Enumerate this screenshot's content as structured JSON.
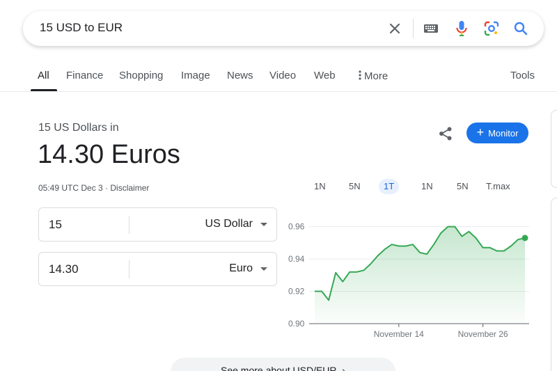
{
  "search": {
    "query": "15 USD to EUR"
  },
  "icons": {
    "clear": "close-icon",
    "keyboard": "keyboard-icon",
    "voice": "microphone-icon",
    "lens": "camera-lens-icon",
    "search": "search-icon",
    "share": "share-icon",
    "more_vert": "more-vert-icon"
  },
  "tabs": [
    {
      "label": "All",
      "active": true
    },
    {
      "label": "Finance"
    },
    {
      "label": "Shopping"
    },
    {
      "label": "Image"
    },
    {
      "label": "News"
    },
    {
      "label": "Video"
    },
    {
      "label": "Web"
    },
    {
      "label": "More"
    }
  ],
  "tools_label": "Tools",
  "conversion": {
    "subtitle": "15 US Dollars in",
    "result": "14.30 Euros",
    "meta": "05:49 UTC Dec 3 · Disclaimer",
    "from": {
      "amount": "15",
      "currency": "US Dollar"
    },
    "to": {
      "amount": "14.30",
      "currency": "Euro"
    }
  },
  "actions": {
    "monitor_label": "Monitor"
  },
  "ranges": [
    {
      "label": "1N"
    },
    {
      "label": "5N"
    },
    {
      "label": "1T",
      "active": true
    },
    {
      "label": "1N"
    },
    {
      "label": "5N"
    },
    {
      "label": "T.max"
    }
  ],
  "colors": {
    "accent": "#1a73e8",
    "line": "#34a853",
    "area": "#e6f4ea"
  },
  "see_more_label": "See more about USD/EUR",
  "chart_data": {
    "type": "area",
    "ylim": [
      0.9,
      0.965
    ],
    "yticks": [
      "0.96",
      "0.94",
      "0.92",
      "0.90"
    ],
    "xtick_labels": [
      {
        "label": "November 14",
        "index": 12
      },
      {
        "label": "November 26",
        "index": 24
      }
    ],
    "series": [
      {
        "values": [
          0.92,
          0.92,
          0.9145,
          0.9315,
          0.926,
          0.932,
          0.932,
          0.933,
          0.937,
          0.942,
          0.946,
          0.949,
          0.948,
          0.948,
          0.949,
          0.944,
          0.943,
          0.949,
          0.956,
          0.96,
          0.96,
          0.954,
          0.957,
          0.953,
          0.947,
          0.947,
          0.945,
          0.945,
          0.948,
          0.952,
          0.953
        ]
      }
    ],
    "grid": true,
    "end_marker": true
  }
}
